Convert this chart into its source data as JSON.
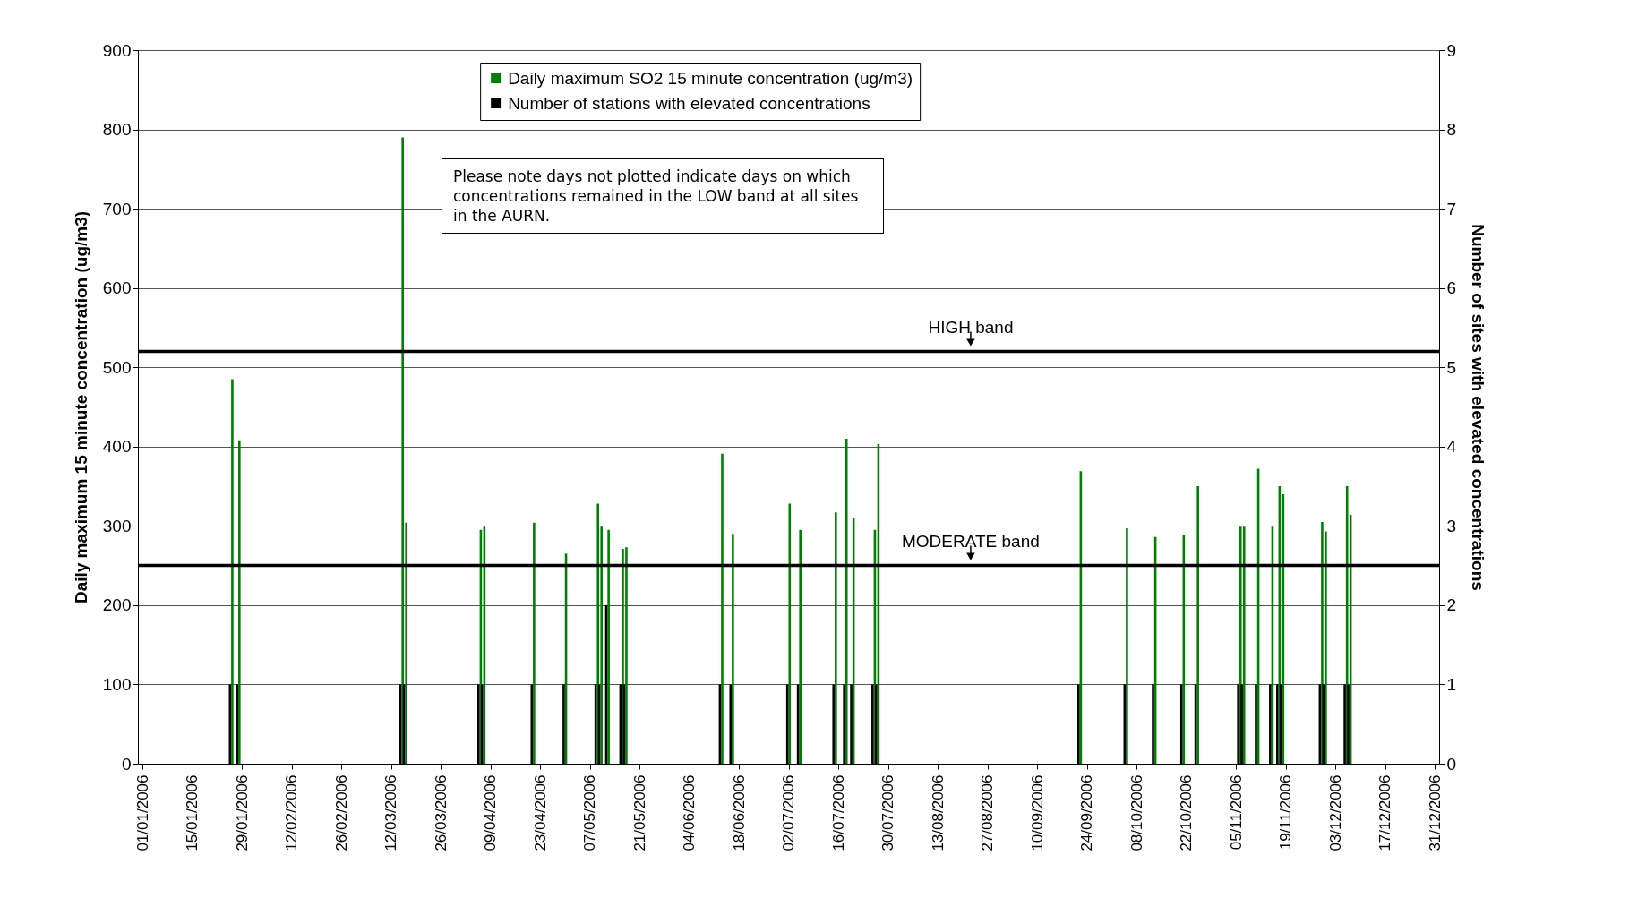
{
  "chart_data": {
    "type": "bar",
    "ylabel": "Daily maximum 15 minute concentration (ug/m3)",
    "y2label": "Number of sites with elevated concentrations",
    "xlim": [
      "2006-01-01",
      "2006-12-31"
    ],
    "xticks": [
      {
        "value": "2006-01-01",
        "label": "01/01/2006"
      },
      {
        "value": "2006-01-15",
        "label": "15/01/2006"
      },
      {
        "value": "2006-01-29",
        "label": "29/01/2006"
      },
      {
        "value": "2006-02-12",
        "label": "12/02/2006"
      },
      {
        "value": "2006-02-26",
        "label": "26/02/2006"
      },
      {
        "value": "2006-03-12",
        "label": "12/03/2006"
      },
      {
        "value": "2006-03-26",
        "label": "26/03/2006"
      },
      {
        "value": "2006-04-09",
        "label": "09/04/2006"
      },
      {
        "value": "2006-04-23",
        "label": "23/04/2006"
      },
      {
        "value": "2006-05-07",
        "label": "07/05/2006"
      },
      {
        "value": "2006-05-21",
        "label": "21/05/2006"
      },
      {
        "value": "2006-06-04",
        "label": "04/06/2006"
      },
      {
        "value": "2006-06-18",
        "label": "18/06/2006"
      },
      {
        "value": "2006-07-02",
        "label": "02/07/2006"
      },
      {
        "value": "2006-07-16",
        "label": "16/07/2006"
      },
      {
        "value": "2006-07-30",
        "label": "30/07/2006"
      },
      {
        "value": "2006-08-13",
        "label": "13/08/2006"
      },
      {
        "value": "2006-08-27",
        "label": "27/08/2006"
      },
      {
        "value": "2006-09-10",
        "label": "10/09/2006"
      },
      {
        "value": "2006-09-24",
        "label": "24/09/2006"
      },
      {
        "value": "2006-10-08",
        "label": "08/10/2006"
      },
      {
        "value": "2006-10-22",
        "label": "22/10/2006"
      },
      {
        "value": "2006-11-05",
        "label": "05/11/2006"
      },
      {
        "value": "2006-11-19",
        "label": "19/11/2006"
      },
      {
        "value": "2006-12-03",
        "label": "03/12/2006"
      },
      {
        "value": "2006-12-17",
        "label": "17/12/2006"
      },
      {
        "value": "2006-12-31",
        "label": "31/12/2006"
      }
    ],
    "ylim": [
      0,
      900
    ],
    "yticks": [
      0,
      100,
      200,
      300,
      400,
      500,
      600,
      700,
      800,
      900
    ],
    "y2lim": [
      0,
      9
    ],
    "y2ticks": [
      0,
      1,
      2,
      3,
      4,
      5,
      6,
      7,
      8,
      9
    ],
    "grid": "y",
    "legend": "top",
    "series": [
      {
        "name": "Daily maximum SO2 15 minute concentration (ug/m3)",
        "color": "#008000",
        "x": [
          "2006-01-26",
          "2006-01-28",
          "2006-03-15",
          "2006-03-16",
          "2006-04-06",
          "2006-04-07",
          "2006-04-21",
          "2006-04-30",
          "2006-05-09",
          "2006-05-10",
          "2006-05-12",
          "2006-05-16",
          "2006-05-17",
          "2006-06-13",
          "2006-06-16",
          "2006-07-02",
          "2006-07-05",
          "2006-07-15",
          "2006-07-18",
          "2006-07-20",
          "2006-07-26",
          "2006-07-27",
          "2006-09-22",
          "2006-10-05",
          "2006-10-13",
          "2006-10-21",
          "2006-10-25",
          "2006-11-06",
          "2006-11-07",
          "2006-11-11",
          "2006-11-15",
          "2006-11-17",
          "2006-11-18",
          "2006-11-29",
          "2006-11-30",
          "2006-12-06",
          "2006-12-07"
        ],
        "values": [
          485,
          408,
          790,
          304,
          295,
          299,
          304,
          265,
          328,
          299,
          295,
          271,
          273,
          391,
          290,
          328,
          295,
          317,
          410,
          310,
          295,
          403,
          369,
          297,
          286,
          288,
          350,
          299,
          299,
          372,
          299,
          350,
          340,
          305,
          293,
          350,
          314
        ]
      },
      {
        "name": "Number of stations with elevated concentrations",
        "color": "#000000",
        "axis": "y2",
        "x": [
          "2006-01-26",
          "2006-01-28",
          "2006-03-15",
          "2006-03-16",
          "2006-04-06",
          "2006-04-07",
          "2006-04-21",
          "2006-04-30",
          "2006-05-09",
          "2006-05-10",
          "2006-05-12",
          "2006-05-16",
          "2006-05-17",
          "2006-06-13",
          "2006-06-16",
          "2006-07-02",
          "2006-07-05",
          "2006-07-15",
          "2006-07-18",
          "2006-07-20",
          "2006-07-26",
          "2006-07-27",
          "2006-09-22",
          "2006-10-05",
          "2006-10-13",
          "2006-10-21",
          "2006-10-25",
          "2006-11-06",
          "2006-11-07",
          "2006-11-11",
          "2006-11-15",
          "2006-11-17",
          "2006-11-18",
          "2006-11-29",
          "2006-11-30",
          "2006-12-06",
          "2006-12-07"
        ],
        "values": [
          1,
          1,
          1,
          1,
          1,
          1,
          1,
          1,
          1,
          1,
          2,
          1,
          1,
          1,
          1,
          1,
          1,
          1,
          1,
          1,
          1,
          1,
          1,
          1,
          1,
          1,
          1,
          1,
          1,
          1,
          1,
          1,
          1,
          1,
          1,
          1,
          1
        ]
      }
    ],
    "ref_lines": [
      {
        "axis": "y",
        "value": 520,
        "label": "HIGH band",
        "color": "#000000"
      },
      {
        "axis": "y",
        "value": 250,
        "label": "MODERATE band",
        "color": "#000000"
      }
    ],
    "annotations": [
      "Please note days not plotted indicate days on which concentrations remained in the LOW band at all sites in the AURN."
    ]
  }
}
